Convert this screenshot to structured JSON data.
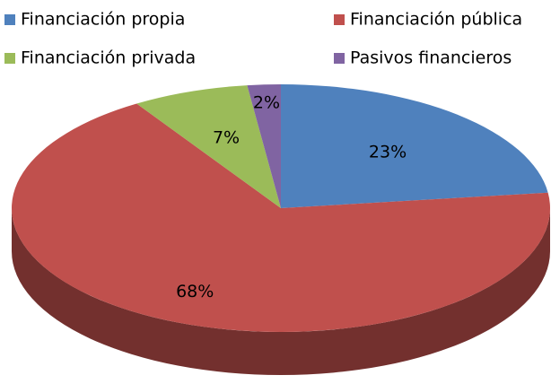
{
  "chart_data": {
    "type": "pie",
    "categories": [
      "Financiación propia",
      "Financiación pública",
      "Financiación privada",
      "Pasivos financieros"
    ],
    "values": [
      23,
      68,
      7,
      2
    ],
    "value_labels": [
      "23%",
      "68%",
      "7%",
      "2%"
    ],
    "colors": [
      "#4f81bd",
      "#c0504d",
      "#9bbb59",
      "#8064a2"
    ]
  }
}
